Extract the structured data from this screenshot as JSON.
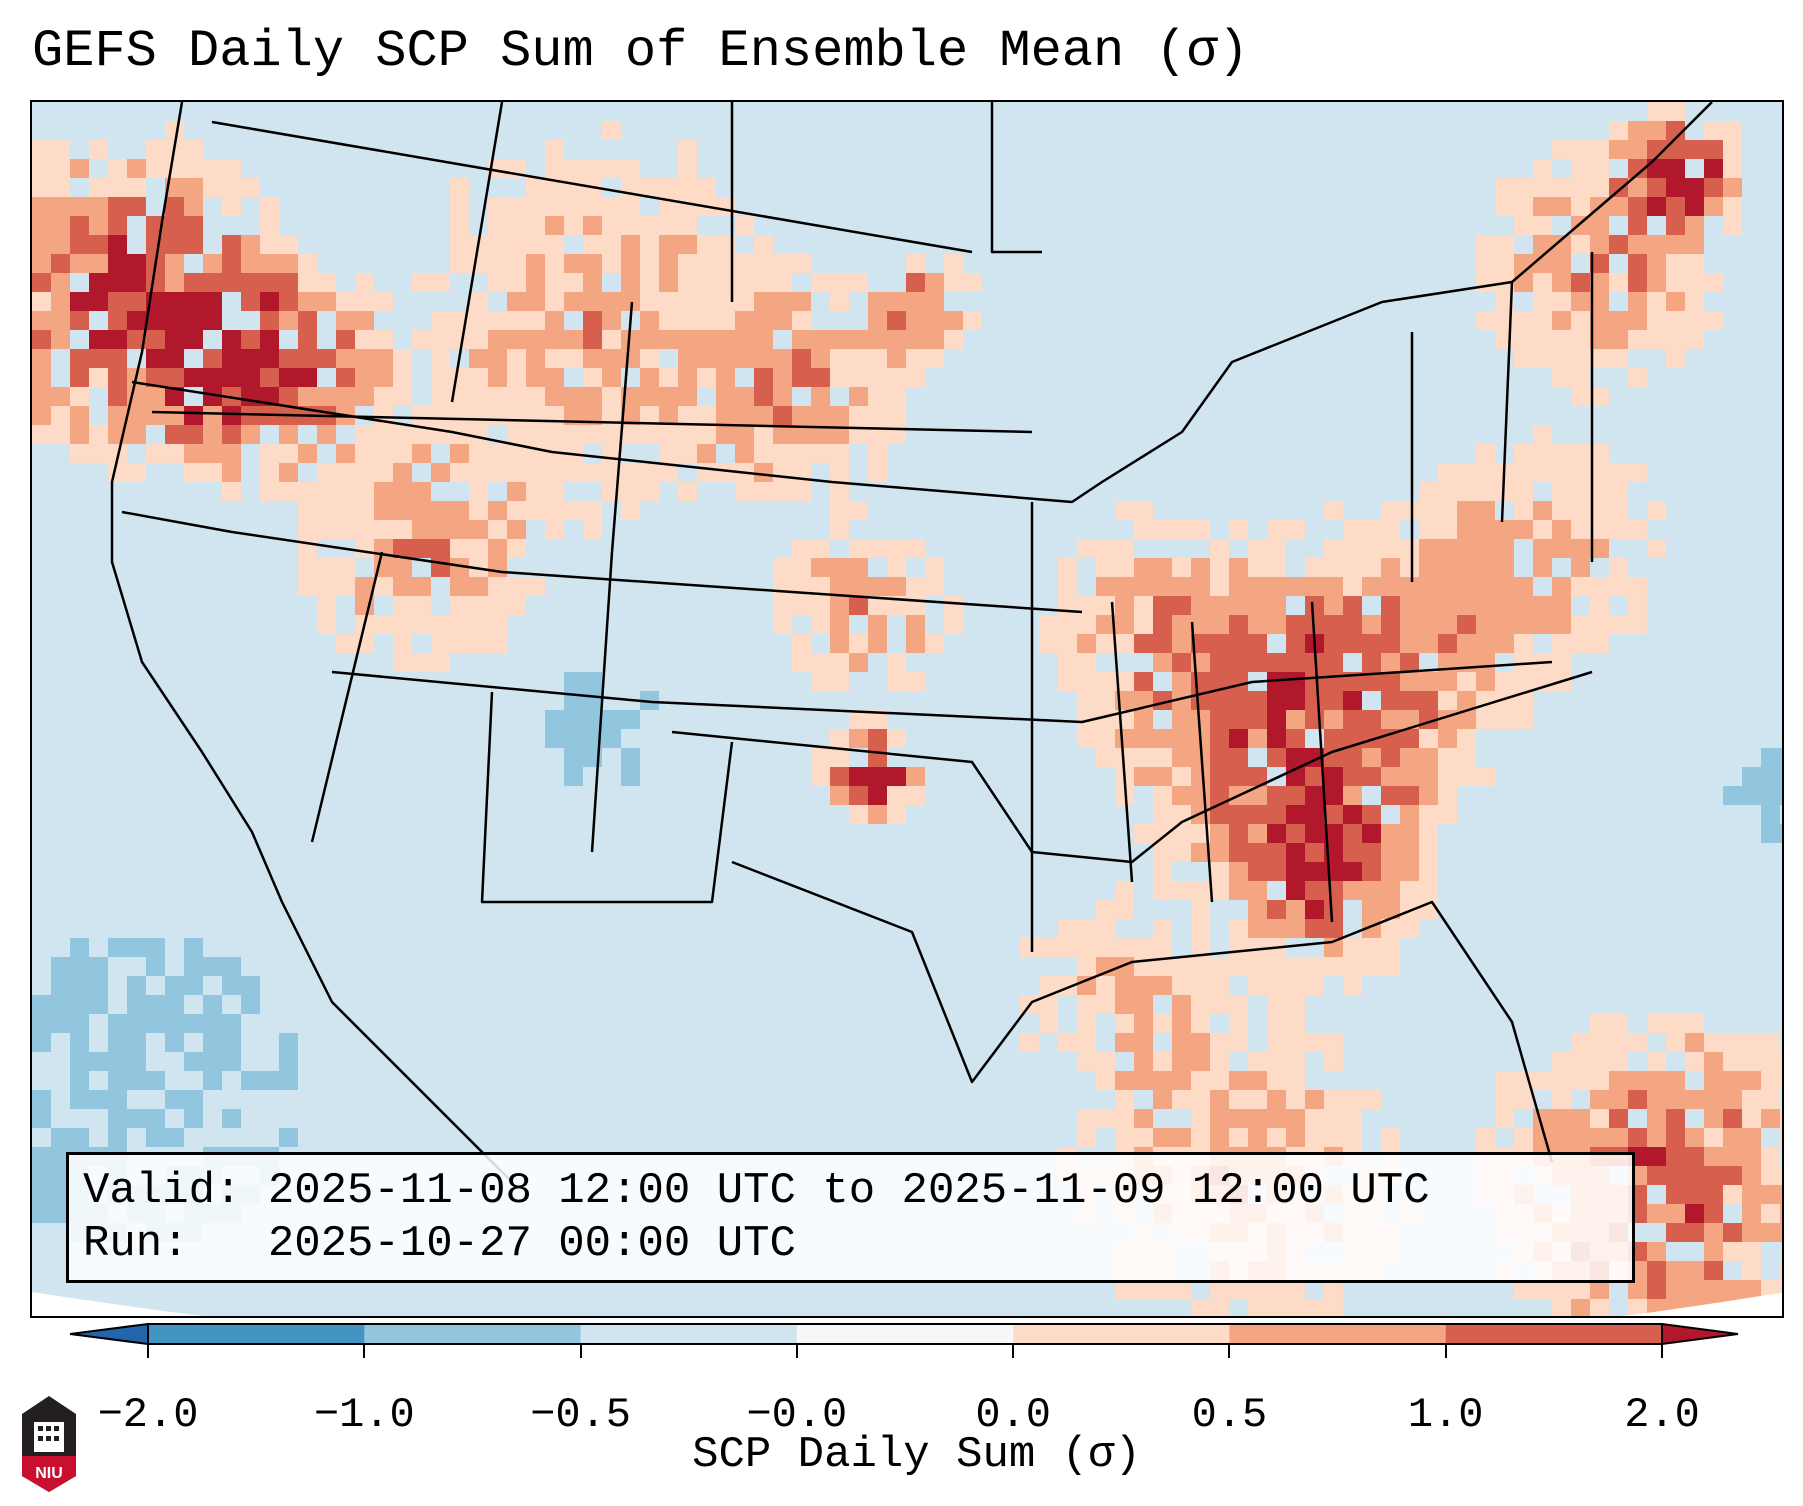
{
  "title": "GEFS Daily SCP Sum of Ensemble Mean (σ)",
  "info": {
    "valid_line": "Valid: 2025-11-08 12:00 UTC to 2025-11-09 12:00 UTC",
    "run_line": "Run:   2025-10-27 00:00 UTC"
  },
  "colorbar": {
    "label": "SCP Daily Sum (σ)",
    "ticks": [
      "−2.0",
      "−1.0",
      "−0.5",
      "−0.0",
      "0.0",
      "0.5",
      "1.0",
      "2.0"
    ],
    "colors": [
      "#2166ac",
      "#4393c3",
      "#92c5de",
      "#d1e5f0",
      "#f7f7f7",
      "#fddbc7",
      "#f4a582",
      "#d6604d",
      "#b2182b"
    ]
  },
  "logo": {
    "text": "NIU"
  }
}
